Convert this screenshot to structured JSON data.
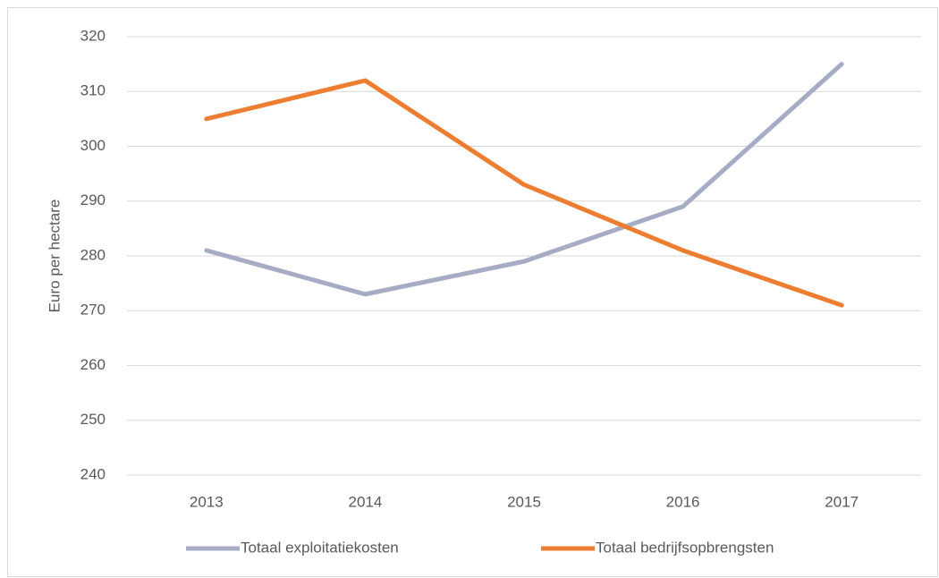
{
  "chart_data": {
    "type": "line",
    "y_label": "Euro per hectare",
    "categories": [
      "2013",
      "2014",
      "2015",
      "2016",
      "2017"
    ],
    "series": [
      {
        "name": "Totaal exploitatiekosten",
        "color": "#a5acc4",
        "values": [
          281,
          273,
          279,
          289,
          315
        ]
      },
      {
        "name": "Totaal bedrijfsopbrengsten",
        "color": "#ed7d31",
        "values": [
          305,
          312,
          293,
          281,
          271
        ]
      }
    ],
    "ylim": [
      240,
      320
    ],
    "yticks": [
      240,
      250,
      260,
      270,
      280,
      290,
      300,
      310,
      320
    ],
    "grid": true,
    "legend": "bottom"
  }
}
